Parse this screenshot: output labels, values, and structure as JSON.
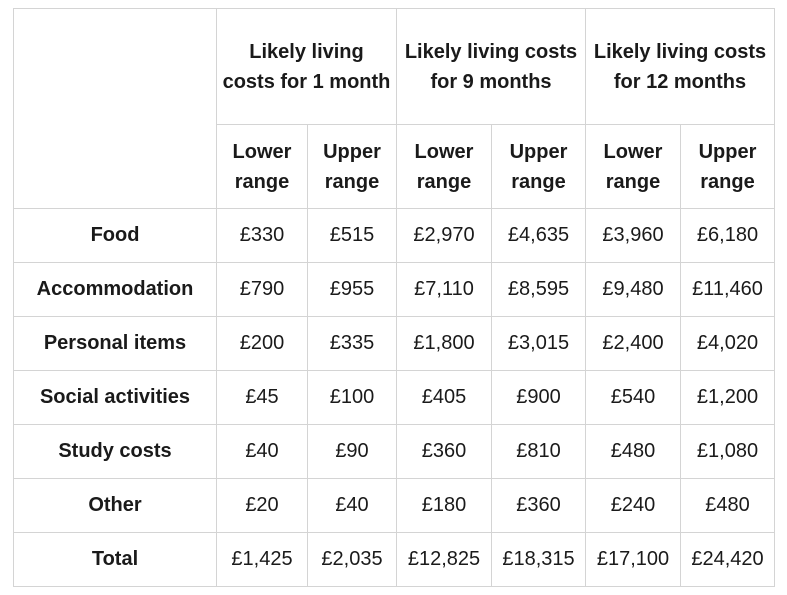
{
  "table": {
    "period_headers": [
      "Likely living costs for 1 month",
      "Likely living costs for 9 months",
      "Likely living costs for 12 months"
    ],
    "range_headers": [
      "Lower range",
      "Upper range",
      "Lower range",
      "Upper range",
      "Lower range",
      "Upper range"
    ],
    "rows": [
      {
        "label": "Food",
        "values": [
          "£330",
          "£515",
          "£2,970",
          "£4,635",
          "£3,960",
          "£6,180"
        ]
      },
      {
        "label": "Accommodation",
        "values": [
          "£790",
          "£955",
          "£7,110",
          "£8,595",
          "£9,480",
          "£11,460"
        ]
      },
      {
        "label": "Personal items",
        "values": [
          "£200",
          "£335",
          "£1,800",
          "£3,015",
          "£2,400",
          "£4,020"
        ]
      },
      {
        "label": "Social activities",
        "values": [
          "£45",
          "£100",
          "£405",
          "£900",
          "£540",
          "£1,200"
        ]
      },
      {
        "label": "Study costs",
        "values": [
          "£40",
          "£90",
          "£360",
          "£810",
          "£480",
          "£1,080"
        ]
      },
      {
        "label": "Other",
        "values": [
          "£20",
          "£40",
          "£180",
          "£360",
          "£240",
          "£480"
        ]
      },
      {
        "label": "Total",
        "values": [
          "£1,425",
          "£2,035",
          "£12,825",
          "£18,315",
          "£17,100",
          "£24,420"
        ]
      }
    ]
  }
}
